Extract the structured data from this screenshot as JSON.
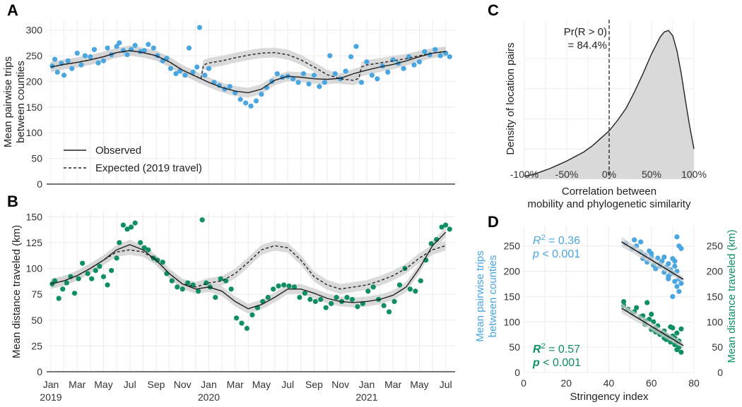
{
  "chart_data": [
    {
      "panel": "A",
      "type": "line",
      "ylabel": "Mean pairwise trips between counties",
      "ylim": [
        0,
        320
      ],
      "yticks": [
        0,
        50,
        100,
        150,
        200,
        250,
        300
      ],
      "x_unit": "months since Jan 2019",
      "legend": {
        "observed": "Observed",
        "expected": "Expected (2019 travel)",
        "placement": "bottom-left"
      },
      "series": [
        {
          "name": "Observed",
          "style": "solid",
          "x": [
            0,
            1,
            2,
            3,
            4,
            5,
            6,
            7,
            8,
            9,
            10,
            11,
            12,
            13,
            14,
            15,
            16,
            17,
            18,
            19,
            20,
            21,
            22,
            23,
            24,
            25,
            26,
            27,
            28,
            29,
            30
          ],
          "y": [
            228,
            233,
            237,
            242,
            248,
            256,
            260,
            256,
            250,
            238,
            222,
            210,
            198,
            188,
            181,
            178,
            185,
            202,
            210,
            208,
            205,
            204,
            206,
            215,
            222,
            228,
            233,
            240,
            248,
            255,
            258
          ]
        },
        {
          "name": "Expected (2019 travel)",
          "style": "dashed",
          "x": [
            0,
            1,
            2,
            3,
            4,
            5,
            6,
            7,
            8,
            9,
            10,
            11,
            11.4,
            11.6,
            12,
            13,
            14,
            15,
            16,
            17,
            18,
            19,
            20,
            21,
            22,
            23,
            23.4,
            23.6,
            24,
            25,
            26,
            27,
            28,
            29,
            30
          ],
          "y": [
            228,
            233,
            237,
            242,
            248,
            256,
            260,
            256,
            250,
            238,
            222,
            210,
            205,
            232,
            236,
            240,
            246,
            251,
            255,
            256,
            252,
            242,
            228,
            213,
            205,
            202,
            206,
            228,
            232,
            236,
            240,
            244,
            250,
            255,
            258
          ]
        }
      ],
      "points": {
        "name": "Daily observations",
        "color": "#4aa6e0",
        "x": [
          0.1,
          0.3,
          0.5,
          0.8,
          1.0,
          1.3,
          1.6,
          2.0,
          2.3,
          2.6,
          3.0,
          3.3,
          3.6,
          4.0,
          4.3,
          4.6,
          5.0,
          5.2,
          5.5,
          5.8,
          6.1,
          6.4,
          6.8,
          7.1,
          7.4,
          7.8,
          8.1,
          8.5,
          8.8,
          9.1,
          9.5,
          9.8,
          10.2,
          10.5,
          10.8,
          11.1,
          11.3,
          11.7,
          12.0,
          12.4,
          12.8,
          13.2,
          13.6,
          14.0,
          14.4,
          14.8,
          15.2,
          15.6,
          16.0,
          16.4,
          16.8,
          17.2,
          17.6,
          18.0,
          18.4,
          18.8,
          19.2,
          19.6,
          20.0,
          20.4,
          20.8,
          21.2,
          21.6,
          22.0,
          22.4,
          22.8,
          23.2,
          23.6,
          24.0,
          24.4,
          24.8,
          25.2,
          25.6,
          26.0,
          26.4,
          26.8,
          27.2,
          27.6,
          28.0,
          28.4,
          28.8,
          29.2,
          29.6,
          30.0,
          30.3
        ],
        "y": [
          230,
          243,
          218,
          235,
          212,
          240,
          225,
          255,
          232,
          250,
          248,
          262,
          236,
          240,
          265,
          252,
          268,
          275,
          260,
          252,
          262,
          270,
          258,
          260,
          272,
          265,
          250,
          240,
          245,
          225,
          215,
          220,
          212,
          265,
          218,
          228,
          305,
          212,
          225,
          198,
          192,
          185,
          190,
          178,
          165,
          158,
          152,
          162,
          175,
          188,
          200,
          215,
          208,
          210,
          205,
          198,
          215,
          195,
          212,
          190,
          198,
          250,
          215,
          205,
          220,
          248,
          268,
          198,
          238,
          212,
          205,
          230,
          218,
          242,
          235,
          225,
          248,
          232,
          238,
          258,
          252,
          262,
          250,
          255,
          248
        ]
      }
    },
    {
      "panel": "B",
      "type": "line",
      "ylabel": "Mean distance traveled (km)",
      "ylim": [
        0,
        155
      ],
      "yticks": [
        0,
        25,
        50,
        75,
        100,
        125,
        150
      ],
      "xticks": [
        "Jan",
        "Mar",
        "May",
        "Jul",
        "Sep",
        "Nov",
        "Jan",
        "Mar",
        "May",
        "Jul",
        "Sep",
        "Nov",
        "Jan",
        "Mar",
        "May",
        "Jul"
      ],
      "xtick_months": [
        0,
        2,
        4,
        6,
        8,
        10,
        12,
        14,
        16,
        18,
        20,
        22,
        24,
        26,
        28,
        30
      ],
      "years": [
        "2019",
        "2020",
        "2021"
      ],
      "series": [
        {
          "name": "Observed",
          "style": "solid",
          "x": [
            0,
            1,
            2,
            3,
            4,
            5,
            6,
            7,
            8,
            9,
            10,
            11,
            12,
            13,
            14,
            15,
            16,
            17,
            18,
            19,
            20,
            21,
            22,
            23,
            24,
            25,
            26,
            27,
            28,
            29,
            30
          ],
          "y": [
            85,
            88,
            93,
            100,
            108,
            118,
            123,
            118,
            108,
            95,
            85,
            80,
            82,
            78,
            68,
            61,
            65,
            72,
            80,
            80,
            76,
            71,
            68,
            67,
            68,
            70,
            74,
            82,
            100,
            122,
            135
          ]
        },
        {
          "name": "Expected (2019 travel)",
          "style": "dashed",
          "x": [
            0,
            1,
            2,
            3,
            4,
            5,
            6,
            7,
            8,
            9,
            10,
            11,
            12,
            13,
            14,
            15,
            16,
            17,
            18,
            19,
            20,
            21,
            22,
            23,
            24,
            25,
            26,
            27,
            28,
            29,
            30
          ],
          "y": [
            85,
            88,
            93,
            100,
            108,
            116,
            118,
            116,
            108,
            95,
            85,
            82,
            86,
            88,
            95,
            106,
            118,
            122,
            120,
            108,
            92,
            84,
            80,
            82,
            84,
            88,
            93,
            100,
            110,
            118,
            122
          ]
        }
      ],
      "points": {
        "name": "Daily observations",
        "color": "#0e8f63",
        "x": [
          0.1,
          0.3,
          0.6,
          0.9,
          1.2,
          1.5,
          1.8,
          2.1,
          2.4,
          2.8,
          3.1,
          3.4,
          3.7,
          4.0,
          4.3,
          4.6,
          5.0,
          5.2,
          5.5,
          5.8,
          6.1,
          6.4,
          6.8,
          7.1,
          7.4,
          7.8,
          8.1,
          8.5,
          8.8,
          9.2,
          9.6,
          10.0,
          10.4,
          10.8,
          11.2,
          11.5,
          11.8,
          12.1,
          12.5,
          12.9,
          13.3,
          13.7,
          14.1,
          14.5,
          14.9,
          15.3,
          15.7,
          16.1,
          16.5,
          16.9,
          17.3,
          17.7,
          18.1,
          18.5,
          18.9,
          19.3,
          19.7,
          20.1,
          20.5,
          20.9,
          21.3,
          21.7,
          22.1,
          22.5,
          22.9,
          23.3,
          23.7,
          24.1,
          24.5,
          24.9,
          25.3,
          25.7,
          26.1,
          26.5,
          26.9,
          27.3,
          27.7,
          28.1,
          28.5,
          28.9,
          29.3,
          29.7,
          30.0,
          30.3
        ],
        "y": [
          85,
          88,
          71,
          80,
          86,
          92,
          76,
          90,
          105,
          95,
          90,
          98,
          102,
          92,
          84,
          98,
          110,
          125,
          142,
          138,
          140,
          144,
          125,
          120,
          118,
          110,
          108,
          106,
          95,
          88,
          82,
          80,
          86,
          84,
          78,
          147,
          86,
          82,
          72,
          90,
          88,
          80,
          52,
          47,
          42,
          55,
          62,
          68,
          72,
          80,
          83,
          84,
          83,
          82,
          72,
          76,
          70,
          68,
          70,
          62,
          66,
          72,
          68,
          72,
          70,
          63,
          66,
          78,
          82,
          70,
          64,
          58,
          68,
          84,
          100,
          80,
          78,
          88,
          108,
          124,
          128,
          140,
          142,
          138
        ]
      }
    },
    {
      "panel": "C",
      "type": "area",
      "title": "",
      "xlabel": "Correlation between mobility and phylogenetic similarity",
      "ylabel": "Density of location pairs",
      "xticks": [
        "-100%",
        "-50%",
        "0%",
        "50%",
        "100%"
      ],
      "xlim": [
        -1,
        1
      ],
      "annotation": "Pr(R > 0)",
      "annotation_value": "= 84.4%",
      "x": [
        -1.0,
        -0.9,
        -0.8,
        -0.7,
        -0.6,
        -0.5,
        -0.4,
        -0.3,
        -0.2,
        -0.1,
        0.0,
        0.1,
        0.2,
        0.3,
        0.4,
        0.5,
        0.6,
        0.65,
        0.7,
        0.75,
        0.8,
        0.85,
        0.9,
        0.95,
        1.0
      ],
      "density": [
        0.02,
        0.03,
        0.05,
        0.07,
        0.095,
        0.12,
        0.15,
        0.18,
        0.22,
        0.27,
        0.32,
        0.39,
        0.47,
        0.58,
        0.7,
        0.83,
        0.94,
        0.975,
        0.985,
        0.95,
        0.85,
        0.7,
        0.52,
        0.35,
        0.2
      ]
    },
    {
      "panel": "D",
      "type": "scatter",
      "xlabel": "Stringency index",
      "xticks": [
        0,
        20,
        40,
        60,
        80
      ],
      "xlim": [
        0,
        80
      ],
      "ylim": [
        0,
        290
      ],
      "yticks": [
        0,
        50,
        100,
        150,
        200,
        250
      ],
      "ylabel_left": "Mean pairwise trips between counties",
      "ylabel_right": "Mean distance traveled (km)",
      "series": [
        {
          "name": "Mean pairwise trips between counties",
          "color": "#4aa6e0",
          "r2_label": "R",
          "r2_value": " = 0.36",
          "p_label": "p",
          "p_value": " < 0.001",
          "fit": [
            [
              46,
              258
            ],
            [
              75,
              184
            ]
          ],
          "x": [
            51,
            53,
            55,
            56,
            57,
            58,
            59,
            60,
            61,
            62,
            63,
            64,
            65,
            66,
            67,
            68,
            68,
            69,
            70,
            70,
            71,
            71,
            72,
            72,
            72,
            73,
            73,
            74,
            74,
            48,
            52,
            55,
            60,
            64,
            66,
            69,
            71,
            73,
            70,
            68
          ],
          "y": [
            245,
            250,
            238,
            225,
            232,
            218,
            240,
            228,
            212,
            205,
            226,
            215,
            220,
            198,
            208,
            215,
            190,
            203,
            196,
            225,
            180,
            210,
            170,
            200,
            268,
            185,
            160,
            176,
            245,
            255,
            262,
            258,
            235,
            210,
            228,
            195,
            220,
            250,
            150,
            185
          ]
        },
        {
          "name": "Mean distance traveled (km)",
          "color": "#0e8f63",
          "r2_label": "R",
          "r2_value": " = 0.57",
          "p_label": "p",
          "p_value": " < 0.001",
          "fit": [
            [
              46,
              127
            ],
            [
              75,
              53
            ]
          ],
          "x": [
            47,
            49,
            51,
            53,
            55,
            56,
            57,
            58,
            59,
            60,
            61,
            62,
            63,
            64,
            65,
            66,
            67,
            68,
            69,
            70,
            70,
            71,
            71,
            72,
            72,
            73,
            73,
            74,
            74,
            47,
            52,
            57,
            62,
            67,
            72,
            69,
            66,
            60
          ],
          "y": [
            140,
            125,
            118,
            128,
            110,
            112,
            95,
            138,
            105,
            85,
            100,
            80,
            92,
            75,
            78,
            82,
            65,
            70,
            60,
            88,
            72,
            55,
            68,
            78,
            45,
            62,
            50,
            86,
            40,
            132,
            120,
            102,
            88,
            73,
            60,
            90,
            68,
            115
          ]
        }
      ]
    }
  ]
}
